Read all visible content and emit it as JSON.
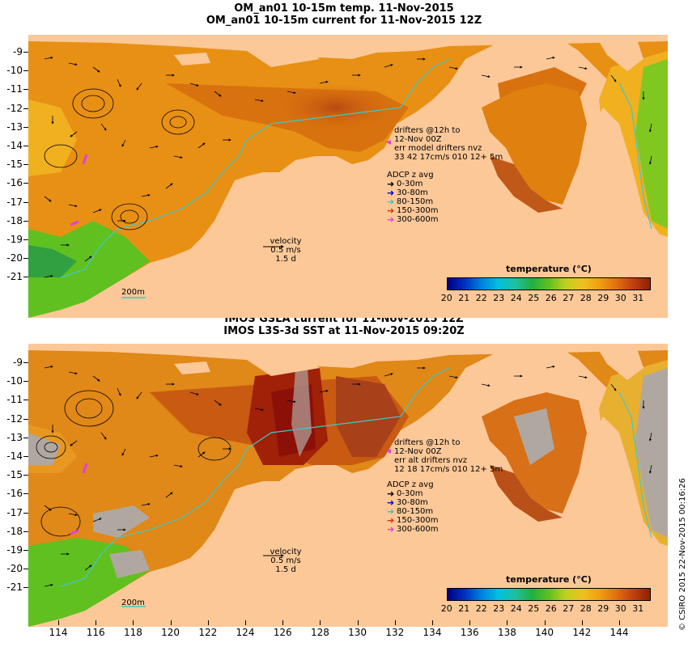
{
  "top": {
    "title1": "OM_an01 10-15m temp. 11-Nov-2015",
    "title2": "OM_an01 10-15m current for 11-Nov-2015 12Z",
    "drifters": [
      "drifters @12h to",
      "12-Nov 00Z",
      "err model drifters nvz",
      "33 42 17cm/s 010 12+ 5m"
    ],
    "adcp_title": "ADCP z avg",
    "adcp": [
      {
        "label": "0-30m",
        "color": "#000000"
      },
      {
        "label": "30-80m",
        "color": "#0000cc"
      },
      {
        "label": "80-150m",
        "color": "#40c0c0"
      },
      {
        "label": "150-300m",
        "color": "#e03000"
      },
      {
        "label": "300-600m",
        "color": "#e040e0"
      }
    ],
    "velocity": [
      "velocity",
      "0.5 m/s",
      "1.5 d"
    ],
    "isobath": "200m",
    "colorbar_title": "temperature (°C)"
  },
  "bottom": {
    "title1": "IMOS GSLA current for 11-Nov-2015 12Z",
    "title2": "IMOS L3S-3d SST at 11-Nov-2015 09:20Z",
    "drifters": [
      "drifters @12h to",
      "12-Nov 00Z",
      "err alt drifters nvz",
      "12 18 17cm/s 010 12+ 5m"
    ],
    "adcp_title": "ADCP z avg",
    "adcp": [
      {
        "label": "0-30m",
        "color": "#000000"
      },
      {
        "label": "30-80m",
        "color": "#0000cc"
      },
      {
        "label": "80-150m",
        "color": "#40c0c0"
      },
      {
        "label": "150-300m",
        "color": "#e03000"
      },
      {
        "label": "300-600m",
        "color": "#e040e0"
      }
    ],
    "velocity": [
      "velocity",
      "0.5 m/s",
      "1.5 d"
    ],
    "isobath": "200m",
    "colorbar_title": "temperature (°C)"
  },
  "colorbar_ticks": [
    "20",
    "21",
    "22",
    "23",
    "24",
    "25",
    "26",
    "27",
    "28",
    "29",
    "30",
    "31"
  ],
  "lat_ticks": [
    "-9",
    "-10",
    "-11",
    "-12",
    "-13",
    "-14",
    "-15",
    "-16",
    "-17",
    "-18",
    "-19",
    "-20",
    "-21"
  ],
  "lon_ticks": [
    "114",
    "116",
    "118",
    "120",
    "122",
    "124",
    "126",
    "128",
    "130",
    "132",
    "134",
    "136",
    "138",
    "140",
    "142",
    "144"
  ],
  "copyright": "© CSIRO 2015   22-Nov-2015 00:16:26",
  "colors": {
    "land": "#fcc898",
    "warm_sea": "#e88a10",
    "hot_sea": "#b04010",
    "cool_sea": "#60c020",
    "no_data": "#b0a8a0",
    "isobath": "#40c8c8"
  }
}
